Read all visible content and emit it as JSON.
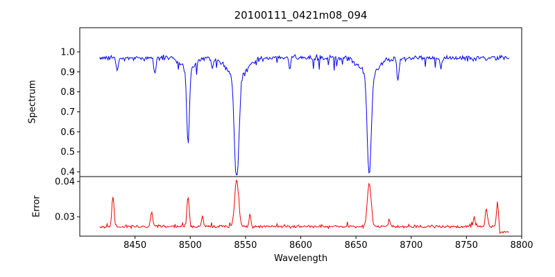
{
  "chart_data": {
    "type": "line",
    "title": "20100111_0421m08_094",
    "xlabel": "Wavelength",
    "xlim": [
      8400,
      8800
    ],
    "x_range_data": [
      8418,
      8789
    ],
    "xticks": [
      8450,
      8500,
      8550,
      8600,
      8650,
      8700,
      8750,
      8800
    ],
    "grid": false,
    "legend": "none",
    "panels": [
      {
        "id": "spectrum",
        "ylabel": "Spectrum",
        "line_color": "#0000ee",
        "ylim": [
          0.376,
          1.121
        ],
        "yticks": [
          "0.4",
          "0.5",
          "0.6",
          "0.7",
          "0.8",
          "0.9",
          "1.0"
        ],
        "continuum_level": 0.97,
        "noise_sigma": 0.013,
        "absorption_lines": [
          {
            "center": 8498,
            "floor": 0.6,
            "width": 1.2
          },
          {
            "center": 8542,
            "floor": 0.42,
            "width": 2.0
          },
          {
            "center": 8662,
            "floor": 0.46,
            "width": 1.8
          }
        ],
        "minor_dips": [
          {
            "center": 8434,
            "depth": 0.06,
            "width": 0.9
          },
          {
            "center": 8468,
            "depth": 0.08,
            "width": 0.9
          },
          {
            "center": 8520,
            "depth": 0.05,
            "width": 0.8
          },
          {
            "center": 8590,
            "depth": 0.05,
            "width": 0.8
          },
          {
            "center": 8688,
            "depth": 0.11,
            "width": 1.0
          },
          {
            "center": 8727,
            "depth": 0.06,
            "width": 0.9
          }
        ]
      },
      {
        "id": "error",
        "ylabel": "Error",
        "line_color": "#ee0000",
        "ylim": [
          0.0245,
          0.0414
        ],
        "yticks": [
          "0.03",
          "0.04"
        ],
        "baseline_level": 0.0272,
        "noise_sigma": 0.0004,
        "error_spikes": [
          {
            "center": 8430,
            "height": 0.0085,
            "width": 1.0
          },
          {
            "center": 8465,
            "height": 0.0045,
            "width": 0.9
          },
          {
            "center": 8498,
            "height": 0.0085,
            "width": 1.0
          },
          {
            "center": 8511,
            "height": 0.003,
            "width": 0.8
          },
          {
            "center": 8542,
            "height": 0.0132,
            "width": 1.8
          },
          {
            "center": 8554,
            "height": 0.0035,
            "width": 0.8
          },
          {
            "center": 8662,
            "height": 0.0125,
            "width": 1.7
          },
          {
            "center": 8680,
            "height": 0.002,
            "width": 0.8
          },
          {
            "center": 8757,
            "height": 0.003,
            "width": 0.8
          },
          {
            "center": 8768,
            "height": 0.005,
            "width": 0.9
          },
          {
            "center": 8778,
            "height": 0.0065,
            "width": 0.9
          }
        ],
        "end_drop": {
          "start": 8780,
          "level": 0.0256
        }
      }
    ]
  }
}
